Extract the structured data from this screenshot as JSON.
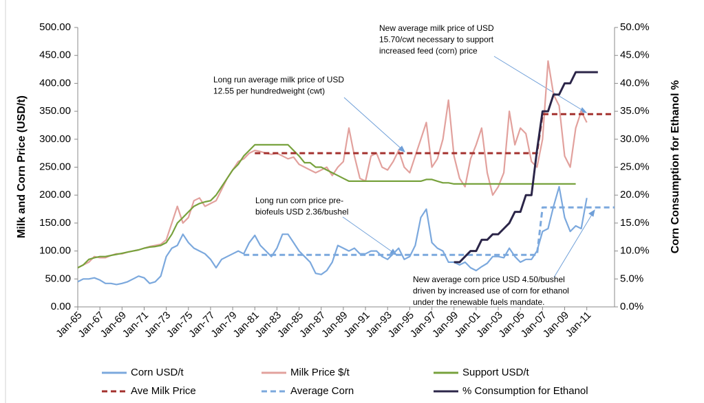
{
  "chart_data": {
    "type": "line",
    "y_label": "Milk and Corn Price (USD/t)",
    "y2_label": "Corn Consumption for Ethanol %",
    "categories": [
      "Jan-65",
      null,
      null,
      null,
      "Jan-67",
      null,
      null,
      null,
      "Jan-69",
      null,
      null,
      null,
      "Jan-71",
      null,
      null,
      null,
      "Jan-73",
      null,
      null,
      null,
      "Jan-75",
      null,
      null,
      null,
      "Jan-77",
      null,
      null,
      null,
      "Jan-79",
      null,
      null,
      null,
      "Jan-81",
      null,
      null,
      null,
      "Jan-83",
      null,
      null,
      null,
      "Jan-85",
      null,
      null,
      null,
      "Jan-87",
      null,
      null,
      null,
      "Jan-89",
      null,
      null,
      null,
      "Jan-91",
      null,
      null,
      null,
      "Jan-93",
      null,
      null,
      null,
      "Jan-95",
      null,
      null,
      null,
      "Jan-97",
      null,
      null,
      null,
      "Jan-99",
      null,
      null,
      null,
      "Jan-01",
      null,
      null,
      null,
      "Jan-03",
      null,
      null,
      null,
      "Jan-05",
      null,
      null,
      null,
      "Jan-07",
      null,
      null,
      null,
      "Jan-09",
      null,
      null,
      null,
      "Jan-11",
      null,
      null,
      null,
      null,
      null
    ],
    "ylim": [
      0,
      500
    ],
    "yticks": [
      {
        "value": 0,
        "label": "0.00"
      },
      {
        "value": 50,
        "label": "50.00"
      },
      {
        "value": 100,
        "label": "100.00"
      },
      {
        "value": 150,
        "label": "150.00"
      },
      {
        "value": 200,
        "label": "200.00"
      },
      {
        "value": 250,
        "label": "250.00"
      },
      {
        "value": 300,
        "label": "300.00"
      },
      {
        "value": 350,
        "label": "350.00"
      },
      {
        "value": 400,
        "label": "400.00"
      },
      {
        "value": 450,
        "label": "450.00"
      },
      {
        "value": 500,
        "label": "500.00"
      }
    ],
    "y2lim": [
      0,
      50
    ],
    "y2ticks": [
      {
        "value": 0,
        "label": "0.0%"
      },
      {
        "value": 5,
        "label": "5.0%"
      },
      {
        "value": 10,
        "label": "10.0%"
      },
      {
        "value": 15,
        "label": "15.0%"
      },
      {
        "value": 20,
        "label": "20.0%"
      },
      {
        "value": 25,
        "label": "25.0%"
      },
      {
        "value": 30,
        "label": "30.0%"
      },
      {
        "value": 35,
        "label": "35.0%"
      },
      {
        "value": 40,
        "label": "40.0%"
      },
      {
        "value": 45,
        "label": "45.0%"
      },
      {
        "value": 50,
        "label": "50.0%"
      }
    ],
    "grid": false,
    "series": [
      {
        "name": "Corn USD/t",
        "color": "#7ba8dd",
        "dashed": false,
        "values": [
          45,
          50,
          50,
          52,
          48,
          42,
          42,
          40,
          42,
          45,
          50,
          55,
          52,
          42,
          45,
          55,
          90,
          105,
          110,
          130,
          115,
          105,
          100,
          95,
          85,
          70,
          85,
          90,
          95,
          100,
          95,
          115,
          128,
          110,
          100,
          90,
          105,
          130,
          130,
          115,
          100,
          90,
          80,
          60,
          58,
          65,
          80,
          110,
          105,
          100,
          105,
          95,
          95,
          100,
          100,
          90,
          85,
          95,
          105,
          85,
          90,
          110,
          160,
          175,
          115,
          105,
          100,
          80,
          80,
          75,
          80,
          70,
          65,
          72,
          78,
          90,
          90,
          88,
          105,
          90,
          80,
          85,
          85,
          100,
          135,
          140,
          180,
          215,
          160,
          135,
          145,
          140,
          195,
          null,
          null,
          null,
          null,
          null
        ]
      },
      {
        "name": "Milk Price $/t",
        "color": "#e2a19d",
        "dashed": false,
        "values": [
          70,
          75,
          80,
          90,
          88,
          88,
          92,
          95,
          95,
          98,
          100,
          102,
          105,
          108,
          110,
          112,
          120,
          150,
          180,
          150,
          160,
          190,
          195,
          180,
          185,
          190,
          210,
          230,
          245,
          260,
          265,
          275,
          280,
          278,
          275,
          273,
          275,
          270,
          265,
          268,
          255,
          250,
          245,
          240,
          245,
          250,
          235,
          250,
          260,
          320,
          270,
          230,
          225,
          270,
          275,
          250,
          245,
          260,
          280,
          250,
          240,
          270,
          300,
          330,
          250,
          265,
          300,
          370,
          270,
          230,
          215,
          265,
          290,
          320,
          240,
          200,
          215,
          240,
          350,
          290,
          320,
          310,
          260,
          250,
          300,
          440,
          380,
          360,
          270,
          250,
          320,
          350,
          330,
          null,
          null,
          null,
          null,
          null
        ]
      },
      {
        "name": "Support USD/t",
        "color": "#77a13c",
        "dashed": false,
        "values": [
          70,
          75,
          85,
          88,
          90,
          90,
          92,
          94,
          96,
          98,
          100,
          102,
          105,
          107,
          108,
          110,
          115,
          130,
          150,
          160,
          170,
          180,
          185,
          188,
          190,
          200,
          215,
          230,
          245,
          255,
          270,
          280,
          290,
          290,
          290,
          290,
          290,
          290,
          290,
          280,
          270,
          258,
          258,
          250,
          250,
          245,
          240,
          235,
          230,
          225,
          225,
          225,
          225,
          225,
          225,
          225,
          225,
          225,
          225,
          225,
          225,
          225,
          225,
          228,
          228,
          225,
          222,
          222,
          220,
          220,
          220,
          220,
          220,
          220,
          220,
          220,
          220,
          220,
          220,
          220,
          220,
          220,
          220,
          220,
          220,
          220,
          220,
          220,
          220,
          220,
          220,
          null,
          null,
          null,
          null,
          null,
          null,
          null
        ]
      },
      {
        "name": "Ave Milk Price",
        "color": "#a3302d",
        "dashed": true,
        "values": [
          null,
          null,
          null,
          null,
          null,
          null,
          null,
          null,
          null,
          null,
          null,
          null,
          null,
          null,
          null,
          null,
          null,
          null,
          null,
          null,
          null,
          null,
          null,
          null,
          null,
          null,
          null,
          null,
          null,
          null,
          null,
          null,
          275,
          275,
          275,
          275,
          275,
          275,
          275,
          275,
          275,
          275,
          275,
          275,
          275,
          275,
          275,
          275,
          275,
          275,
          275,
          275,
          275,
          275,
          275,
          275,
          275,
          275,
          275,
          275,
          275,
          275,
          275,
          275,
          275,
          275,
          275,
          275,
          275,
          275,
          275,
          275,
          275,
          275,
          275,
          275,
          275,
          275,
          275,
          275,
          275,
          275,
          275,
          275,
          345,
          345,
          345,
          345,
          345,
          345,
          345,
          345,
          345,
          345,
          345,
          345,
          345,
          345
        ]
      },
      {
        "name": "Average Corn",
        "color": "#7ba8dd",
        "dashed": true,
        "values": [
          null,
          null,
          null,
          null,
          null,
          null,
          null,
          null,
          null,
          null,
          null,
          null,
          null,
          null,
          null,
          null,
          null,
          null,
          null,
          null,
          null,
          null,
          null,
          null,
          null,
          null,
          null,
          null,
          null,
          null,
          93,
          93,
          93,
          93,
          93,
          93,
          93,
          93,
          93,
          93,
          93,
          93,
          93,
          93,
          93,
          93,
          93,
          93,
          93,
          93,
          93,
          93,
          93,
          93,
          93,
          93,
          93,
          93,
          93,
          93,
          93,
          93,
          93,
          93,
          93,
          93,
          93,
          93,
          93,
          93,
          93,
          93,
          93,
          93,
          93,
          93,
          93,
          93,
          93,
          93,
          93,
          93,
          93,
          93,
          178,
          178,
          178,
          178,
          178,
          178,
          178,
          178,
          178,
          178,
          178,
          178,
          178,
          178
        ]
      },
      {
        "name": "% Consumption for Ethanol",
        "color": "#2b2548",
        "dashed": false,
        "axis": "y2",
        "values": [
          null,
          null,
          null,
          null,
          null,
          null,
          null,
          null,
          null,
          null,
          null,
          null,
          null,
          null,
          null,
          null,
          null,
          null,
          null,
          null,
          null,
          null,
          null,
          null,
          null,
          null,
          null,
          null,
          null,
          null,
          null,
          null,
          null,
          null,
          null,
          null,
          null,
          null,
          null,
          null,
          null,
          null,
          null,
          null,
          null,
          null,
          null,
          null,
          null,
          null,
          null,
          null,
          null,
          null,
          null,
          null,
          null,
          null,
          null,
          null,
          null,
          null,
          null,
          null,
          null,
          null,
          null,
          null,
          8,
          8,
          9,
          10,
          10,
          12,
          12,
          13,
          13,
          14,
          15,
          17,
          17,
          20,
          20,
          28,
          35,
          35,
          38,
          38,
          40,
          40,
          42,
          42,
          42,
          42,
          42,
          null,
          null,
          null
        ]
      }
    ],
    "annotations": [
      {
        "lines": [
          "New average  milk price of USD",
          "15.70/cwt necessary to support",
          "increased feed (corn) price"
        ]
      },
      {
        "lines": [
          "Long run average milk price of USD",
          "12.55 per hundredweight (cwt)"
        ]
      },
      {
        "lines": [
          "Long run corn price pre-",
          "biofeuls USD 2.36/bushel"
        ]
      },
      {
        "lines": [
          "New average corn price USD 4.50/bushel",
          "driven by increased use of corn for ethanol",
          "under the renewable  fuels mandate."
        ]
      }
    ]
  }
}
